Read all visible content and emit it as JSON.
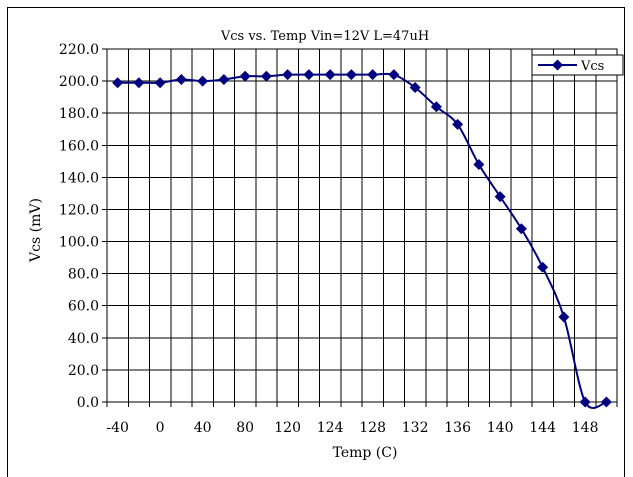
{
  "chart_data": {
    "type": "line",
    "title": "Vcs vs. Temp Vin=12V L=47uH",
    "xlabel": "Temp (C)",
    "ylabel": "Vcs (mV)",
    "categories": [
      "-40",
      "-20",
      "0",
      "20",
      "40",
      "60",
      "80",
      "100",
      "120",
      "122",
      "124",
      "126",
      "128",
      "130",
      "132",
      "134",
      "136",
      "138",
      "140",
      "142",
      "144",
      "146",
      "148",
      "150"
    ],
    "x_tick_labels": [
      "-40",
      "0",
      "40",
      "80",
      "120",
      "124",
      "128",
      "132",
      "136",
      "140",
      "144",
      "148"
    ],
    "y_tick_labels": [
      "0.0",
      "20.0",
      "40.0",
      "60.0",
      "80.0",
      "100.0",
      "120.0",
      "140.0",
      "160.0",
      "180.0",
      "200.0",
      "220.0"
    ],
    "ylim": [
      0,
      220
    ],
    "grid": true,
    "legend_position": "top-right",
    "series": [
      {
        "name": "Vcs",
        "color": "#000080",
        "marker": "diamond",
        "values": [
          199,
          199,
          199,
          201,
          200,
          201,
          203,
          203,
          204,
          204,
          204,
          204,
          204,
          204,
          196,
          184,
          173,
          148,
          128,
          108,
          84,
          53,
          0,
          0
        ]
      }
    ]
  }
}
